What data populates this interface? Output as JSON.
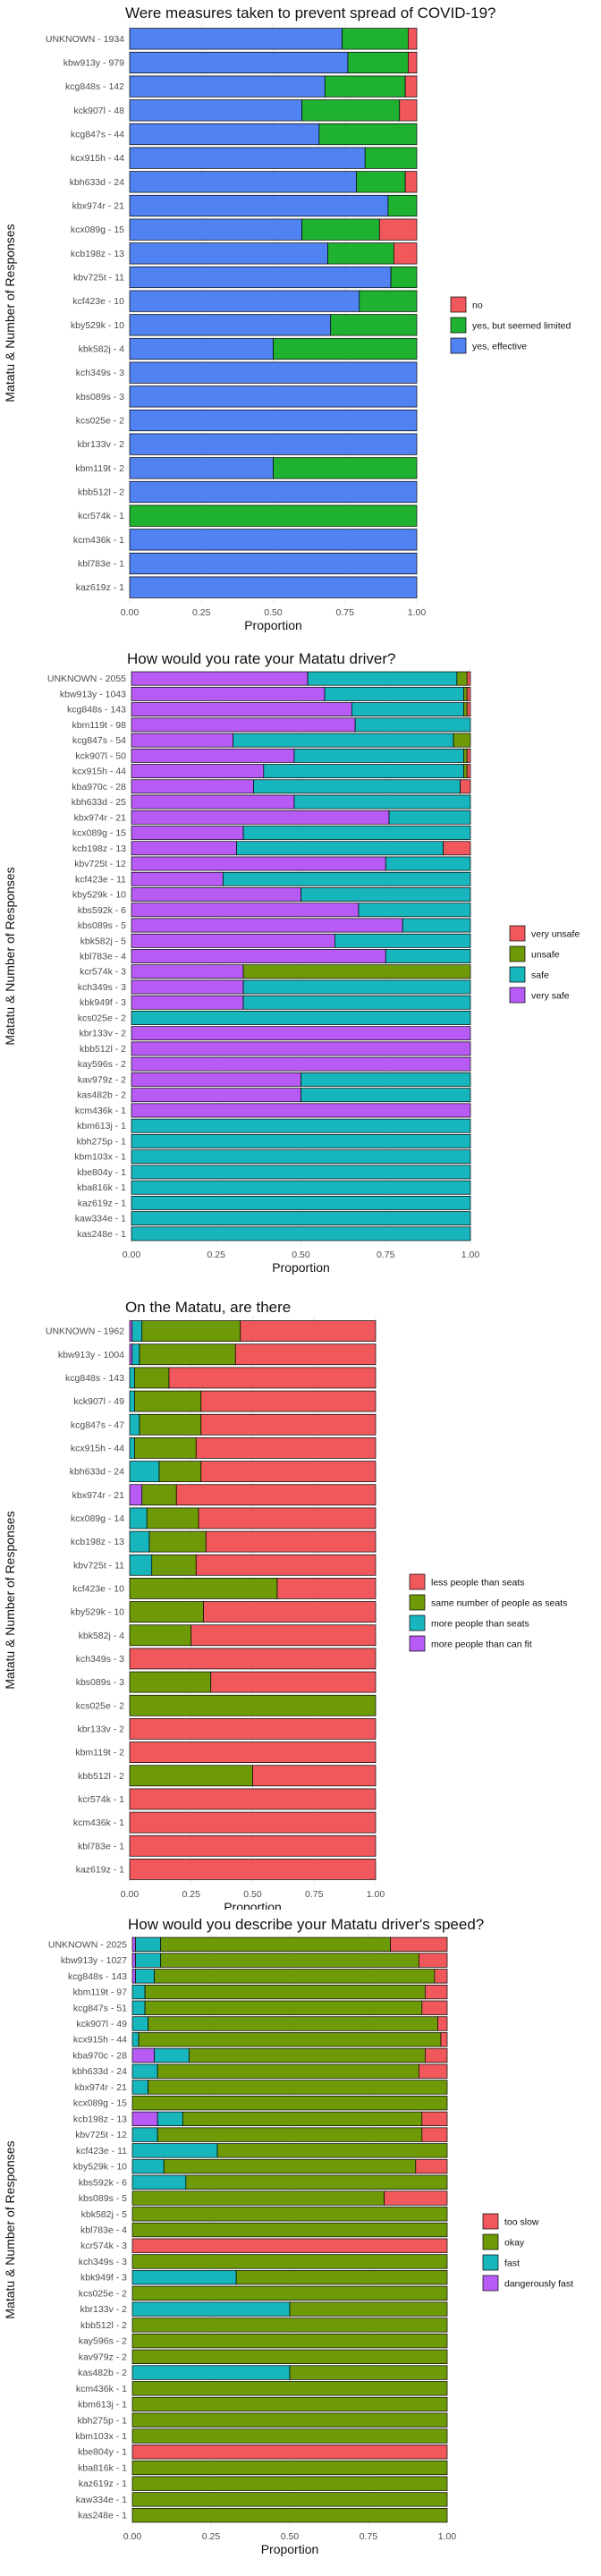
{
  "colors": {
    "red": "#F0585B",
    "green": "#1FB230",
    "blue": "#5182F2",
    "olive": "#6F9A07",
    "teal": "#17B5BC",
    "purple": "#B85BF5"
  },
  "chart_data": [
    {
      "type": "bar",
      "orientation": "horizontal",
      "stacked": true,
      "title": "Were measures taken to prevent spread of COVID-19?",
      "xlabel": "Proportion",
      "ylabel": "Matatu & Number of Responses",
      "xlim": [
        0,
        1
      ],
      "xticks": [
        "0.00",
        "0.25",
        "0.50",
        "0.75",
        "1.00"
      ],
      "legend_position": "right",
      "categories": [
        "UNKNOWN - 1934",
        "kbw913y - 979",
        "kcg848s - 142",
        "kck907l - 48",
        "kcg847s - 44",
        "kcx915h - 44",
        "kbh633d - 24",
        "kbx974r - 21",
        "kcx089g - 15",
        "kcb198z - 13",
        "kbv725t - 11",
        "kcf423e - 10",
        "kby529k - 10",
        "kbk582j - 4",
        "kch349s - 3",
        "kbs089s - 3",
        "kcs025e - 2",
        "kbr133v - 2",
        "kbm119t - 2",
        "kbb512l - 2",
        "kcr574k - 1",
        "kcm436k - 1",
        "kbl783e - 1",
        "kaz619z - 1"
      ],
      "series": [
        {
          "name": "yes, effective",
          "color": "#5182F2",
          "values": [
            0.74,
            0.76,
            0.68,
            0.6,
            0.66,
            0.82,
            0.79,
            0.9,
            0.6,
            0.69,
            0.91,
            0.8,
            0.7,
            0.5,
            1,
            1,
            1,
            1,
            0.5,
            1,
            0,
            1,
            1,
            1
          ]
        },
        {
          "name": "yes, but seemed limited",
          "color": "#1FB230",
          "values": [
            0.23,
            0.21,
            0.28,
            0.34,
            0.34,
            0.18,
            0.17,
            0.1,
            0.27,
            0.23,
            0.09,
            0.2,
            0.3,
            0.5,
            0,
            0,
            0,
            0,
            0.5,
            0,
            1,
            0,
            0,
            0
          ]
        },
        {
          "name": "no",
          "color": "#F0585B",
          "values": [
            0.03,
            0.03,
            0.04,
            0.06,
            0,
            0,
            0.04,
            0,
            0.13,
            0.08,
            0,
            0,
            0,
            0,
            0,
            0,
            0,
            0,
            0,
            0,
            0,
            0,
            0,
            0
          ]
        }
      ],
      "legend": [
        "no",
        "yes, but seemed limited",
        "yes, effective"
      ]
    },
    {
      "type": "bar",
      "orientation": "horizontal",
      "stacked": true,
      "title": "How would you rate your Matatu driver?",
      "xlabel": "Proportion",
      "ylabel": "Matatu & Number of Responses",
      "xlim": [
        0,
        1
      ],
      "xticks": [
        "0.00",
        "0.25",
        "0.50",
        "0.75",
        "1.00"
      ],
      "legend_position": "right",
      "categories": [
        "UNKNOWN - 2055",
        "kbw913y - 1043",
        "kcg848s - 143",
        "kbm119t - 98",
        "kcg847s - 54",
        "kck907l - 50",
        "kcx915h - 44",
        "kba970c - 28",
        "kbh633d - 25",
        "kbx974r - 21",
        "kcx089g - 15",
        "kcb198z - 13",
        "kbv725t - 12",
        "kcf423e - 11",
        "kby529k - 10",
        "kbs592k - 6",
        "kbs089s - 5",
        "kbk582j - 5",
        "kbl783e - 4",
        "kcr574k - 3",
        "kch349s - 3",
        "kbk949f - 3",
        "kcs025e - 2",
        "kbr133v - 2",
        "kbb512l - 2",
        "kay596s - 2",
        "kav979z - 2",
        "kas482b - 2",
        "kcm436k - 1",
        "kbm613j - 1",
        "kbh275p - 1",
        "kbm103x - 1",
        "kbe804y - 1",
        "kba816k - 1",
        "kaz619z - 1",
        "kaw334e - 1",
        "kas248e - 1"
      ],
      "series": [
        {
          "name": "very safe",
          "color": "#B85BF5",
          "values": [
            0.52,
            0.57,
            0.65,
            0.66,
            0.3,
            0.48,
            0.39,
            0.36,
            0.48,
            0.76,
            0.33,
            0.31,
            0.75,
            0.27,
            0.5,
            0.67,
            0.8,
            0.6,
            0.75,
            0.33,
            0.33,
            0.33,
            0,
            1,
            1,
            1,
            0.5,
            0.5,
            1,
            0,
            0,
            0,
            0,
            0,
            0,
            0,
            0
          ]
        },
        {
          "name": "safe",
          "color": "#17B5BC",
          "values": [
            0.44,
            0.41,
            0.33,
            0.34,
            0.65,
            0.5,
            0.59,
            0.61,
            0.52,
            0.24,
            0.67,
            0.61,
            0.25,
            0.73,
            0.5,
            0.33,
            0.2,
            0.4,
            0.25,
            0,
            0.67,
            0.67,
            1,
            0,
            0,
            0,
            0.5,
            0.5,
            0,
            1,
            1,
            1,
            1,
            1,
            1,
            1,
            1
          ]
        },
        {
          "name": "unsafe",
          "color": "#6F9A07",
          "values": [
            0.03,
            0.01,
            0.01,
            0,
            0.05,
            0.01,
            0.01,
            0,
            0,
            0,
            0,
            0,
            0,
            0,
            0,
            0,
            0,
            0,
            0,
            0.67,
            0,
            0,
            0,
            0,
            0,
            0,
            0,
            0,
            0,
            0,
            0,
            0,
            0,
            0,
            0,
            0,
            0
          ]
        },
        {
          "name": "very unsafe",
          "color": "#F0585B",
          "values": [
            0.01,
            0.01,
            0.01,
            0,
            0,
            0.01,
            0.01,
            0.03,
            0,
            0,
            0,
            0.08,
            0,
            0,
            0,
            0,
            0,
            0,
            0,
            0,
            0,
            0,
            0,
            0,
            0,
            0,
            0,
            0,
            0,
            0,
            0,
            0,
            0,
            0,
            0,
            0,
            0
          ]
        }
      ],
      "legend": [
        "very unsafe",
        "unsafe",
        "safe",
        "very safe"
      ]
    },
    {
      "type": "bar",
      "orientation": "horizontal",
      "stacked": true,
      "title": "On the Matatu, are there",
      "xlabel": "Proportion",
      "ylabel": "Matatu & Number of Responses",
      "xlim": [
        0,
        1
      ],
      "xticks": [
        "0.00",
        "0.25",
        "0.50",
        "0.75",
        "1.00"
      ],
      "legend_position": "right",
      "categories": [
        "UNKNOWN - 1962",
        "kbw913y - 1004",
        "kcg848s - 143",
        "kck907l - 49",
        "kcg847s - 47",
        "kcx915h - 44",
        "kbh633d - 24",
        "kbx974r - 21",
        "kcx089g - 14",
        "kcb198z - 13",
        "kbv725t - 11",
        "kcf423e - 10",
        "kby529k - 10",
        "kbk582j - 4",
        "kch349s - 3",
        "kbs089s - 3",
        "kcs025e - 2",
        "kbr133v - 2",
        "kbm119t - 2",
        "kbb512l - 2",
        "kcr574k - 1",
        "kcm436k - 1",
        "kbl783e - 1",
        "kaz619z - 1"
      ],
      "series": [
        {
          "name": "more people than can fit",
          "color": "#B85BF5",
          "values": [
            0.01,
            0.01,
            0,
            0,
            0,
            0,
            0,
            0.05,
            0,
            0,
            0,
            0,
            0,
            0,
            0,
            0,
            0,
            0,
            0,
            0,
            0,
            0,
            0,
            0
          ]
        },
        {
          "name": "more people than seats",
          "color": "#17B5BC",
          "values": [
            0.04,
            0.03,
            0.02,
            0.02,
            0.04,
            0.02,
            0.12,
            0,
            0.07,
            0.08,
            0.09,
            0,
            0,
            0,
            0,
            0,
            0,
            0,
            0,
            0,
            0,
            0,
            0,
            0
          ]
        },
        {
          "name": "same number of people as seats",
          "color": "#6F9A07",
          "values": [
            0.4,
            0.39,
            0.14,
            0.27,
            0.25,
            0.25,
            0.17,
            0.14,
            0.21,
            0.23,
            0.18,
            0.6,
            0.3,
            0.25,
            0,
            0.33,
            1,
            0,
            0,
            0.5,
            0,
            0,
            0,
            0
          ]
        },
        {
          "name": "less people than seats",
          "color": "#F0585B",
          "values": [
            0.55,
            0.57,
            0.84,
            0.71,
            0.71,
            0.73,
            0.71,
            0.81,
            0.72,
            0.69,
            0.73,
            0.4,
            0.7,
            0.75,
            1,
            0.67,
            0,
            1,
            1,
            0.5,
            1,
            1,
            1,
            1
          ]
        }
      ],
      "legend": [
        "less people than seats",
        "same number of people as seats",
        "more people than seats",
        "more people than can fit"
      ]
    },
    {
      "type": "bar",
      "orientation": "horizontal",
      "stacked": true,
      "title": "How would you describe your Matatu driver's speed?",
      "xlabel": "Proportion",
      "ylabel": "Matatu & Number of Responses",
      "xlim": [
        0,
        1
      ],
      "xticks": [
        "0.00",
        "0.25",
        "0.50",
        "0.75",
        "1.00"
      ],
      "legend_position": "right",
      "categories": [
        "UNKNOWN - 2025",
        "kbw913y - 1027",
        "kcg848s - 143",
        "kbm119t - 97",
        "kcg847s - 51",
        "kck907l - 49",
        "kcx915h - 44",
        "kba970c - 28",
        "kbh633d - 24",
        "kbx974r - 21",
        "kcx089g - 15",
        "kcb198z - 13",
        "kbv725t - 12",
        "kcf423e - 11",
        "kby529k - 10",
        "kbs592k - 6",
        "kbs089s - 5",
        "kbk582j - 5",
        "kbl783e - 4",
        "kcr574k - 3",
        "kch349s - 3",
        "kbk949f - 3",
        "kcs025e - 2",
        "kbr133v - 2",
        "kbb512l - 2",
        "kay596s - 2",
        "kav979z - 2",
        "kas482b - 2",
        "kcm436k - 1",
        "kbm613j - 1",
        "kbh275p - 1",
        "kbm103x - 1",
        "kbe804y - 1",
        "kba816k - 1",
        "kaz619z - 1",
        "kaw334e - 1",
        "kas248e - 1"
      ],
      "series": [
        {
          "name": "dangerously fast",
          "color": "#B85BF5",
          "values": [
            0.01,
            0.01,
            0.01,
            0,
            0,
            0,
            0,
            0.07,
            0,
            0,
            0,
            0.08,
            0,
            0,
            0,
            0,
            0,
            0,
            0,
            0,
            0,
            0,
            0,
            0,
            0,
            0,
            0,
            0,
            0,
            0,
            0,
            0,
            0,
            0,
            0,
            0,
            0
          ]
        },
        {
          "name": "fast",
          "color": "#17B5BC",
          "values": [
            0.08,
            0.08,
            0.06,
            0.04,
            0.04,
            0.05,
            0.02,
            0.11,
            0.08,
            0.05,
            0,
            0.08,
            0.08,
            0.27,
            0.1,
            0.17,
            0,
            0,
            0,
            0,
            0,
            0.33,
            0,
            0.5,
            0,
            0,
            0,
            0.5,
            0,
            0,
            0,
            0,
            0,
            0,
            0,
            0,
            0
          ]
        },
        {
          "name": "okay",
          "color": "#6F9A07",
          "values": [
            0.73,
            0.82,
            0.89,
            0.89,
            0.88,
            0.92,
            0.96,
            0.75,
            0.83,
            0.95,
            1,
            0.76,
            0.84,
            0.73,
            0.8,
            0.83,
            0.8,
            1,
            1,
            0,
            1,
            0.67,
            1,
            0.5,
            1,
            1,
            1,
            0.5,
            1,
            1,
            1,
            1,
            0,
            1,
            1,
            1,
            1
          ]
        },
        {
          "name": "too slow",
          "color": "#F0585B",
          "values": [
            0.18,
            0.09,
            0.04,
            0.07,
            0.08,
            0.03,
            0.02,
            0.07,
            0.09,
            0,
            0,
            0.08,
            0.08,
            0,
            0.1,
            0,
            0.2,
            0,
            0,
            1,
            0,
            0,
            0,
            0,
            0,
            0,
            0,
            0,
            0,
            0,
            0,
            0,
            1,
            0,
            0,
            0,
            0
          ]
        }
      ],
      "legend": [
        "too slow",
        "okay",
        "fast",
        "dangerously fast"
      ]
    }
  ]
}
